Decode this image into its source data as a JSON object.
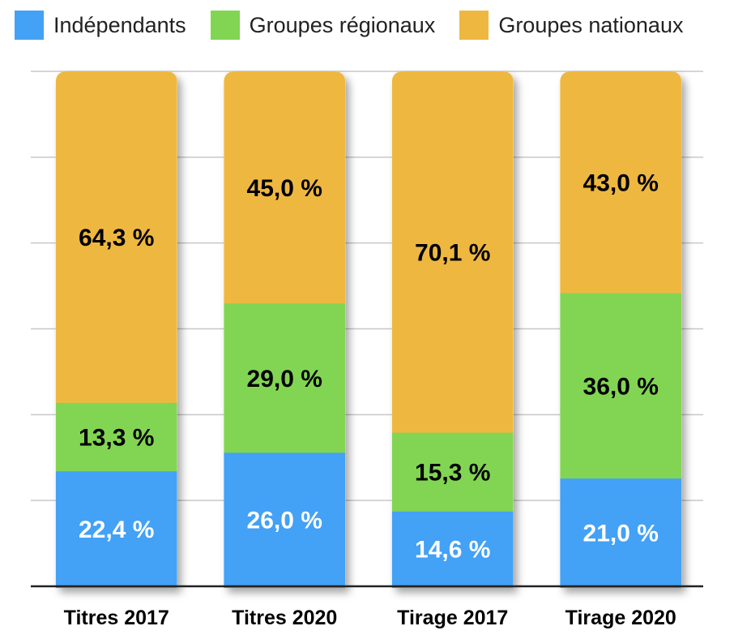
{
  "chart_data": {
    "type": "bar",
    "stacked": true,
    "categories": [
      "Titres 2017",
      "Titres 2020",
      "Tirage 2017",
      "Tirage 2020"
    ],
    "series": [
      {
        "name": "Indépendants",
        "color": "#43a1f6",
        "values": [
          22.4,
          26.0,
          14.6,
          21.0
        ],
        "labels": [
          "22,4 %",
          "26,0 %",
          "14,6 %",
          "21,0 %"
        ],
        "label_color": "#ffffff"
      },
      {
        "name": "Groupes régionaux",
        "color": "#82d552",
        "values": [
          13.3,
          29.0,
          15.3,
          36.0
        ],
        "labels": [
          "13,3 %",
          "29,0 %",
          "15,3 %",
          "36,0 %"
        ],
        "label_color": "#000000"
      },
      {
        "name": "Groupes nationaux",
        "color": "#eeb840",
        "values": [
          64.3,
          45.0,
          70.1,
          43.0
        ],
        "labels": [
          "64,3 %",
          "45,0 %",
          "70,1 %",
          "43,0 %"
        ],
        "label_color": "#000000"
      }
    ],
    "ylim": [
      0,
      100
    ],
    "grid": true,
    "legend_position": "top",
    "title": "",
    "xlabel": "",
    "ylabel": ""
  }
}
